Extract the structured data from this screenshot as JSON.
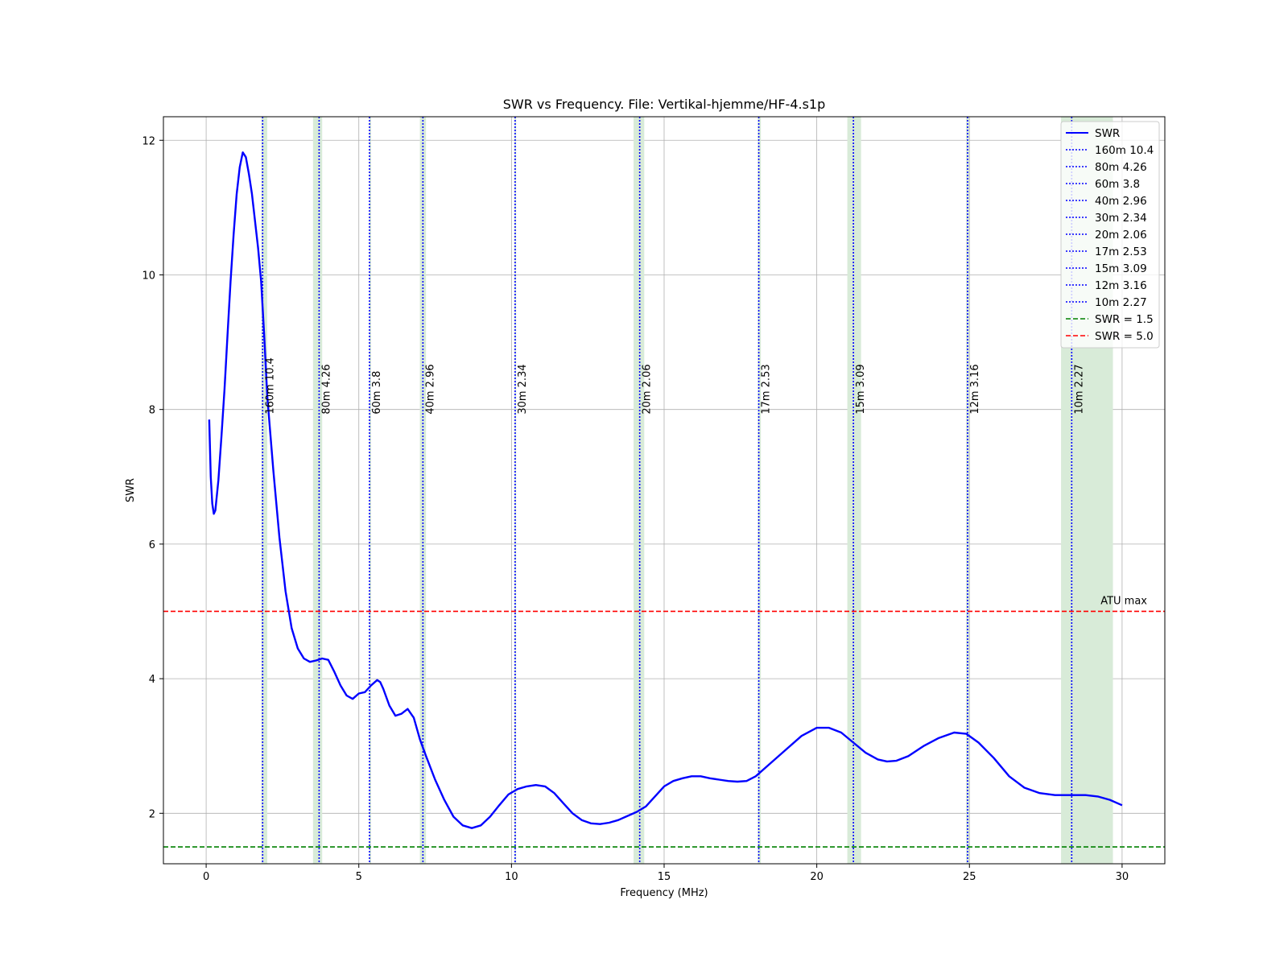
{
  "chart_data": {
    "type": "line",
    "title": "SWR vs Frequency.  File: Vertikal-hjemme/HF-4.s1p",
    "xlabel": "Frequency (MHz)",
    "ylabel": "SWR",
    "xlim": [
      -1.4,
      31.4
    ],
    "ylim": [
      1.25,
      12.35
    ],
    "x_ticks": [
      0,
      5,
      10,
      15,
      20,
      25,
      30
    ],
    "y_ticks": [
      2,
      4,
      6,
      8,
      10,
      12
    ],
    "grid": true,
    "legend_placement": "top-right",
    "series": [
      {
        "name": "SWR",
        "color": "#0000ff",
        "x": [
          0.1,
          0.15,
          0.2,
          0.25,
          0.3,
          0.4,
          0.5,
          0.6,
          0.7,
          0.8,
          0.9,
          1.0,
          1.1,
          1.2,
          1.3,
          1.4,
          1.5,
          1.6,
          1.7,
          1.8,
          1.9,
          2.0,
          2.2,
          2.4,
          2.6,
          2.8,
          3.0,
          3.2,
          3.4,
          3.6,
          3.8,
          4.0,
          4.2,
          4.4,
          4.6,
          4.8,
          5.0,
          5.2,
          5.4,
          5.6,
          5.7,
          5.8,
          6.0,
          6.2,
          6.4,
          6.6,
          6.8,
          7.0,
          7.2,
          7.5,
          7.8,
          8.1,
          8.4,
          8.7,
          9.0,
          9.3,
          9.6,
          9.9,
          10.2,
          10.5,
          10.8,
          11.1,
          11.4,
          11.7,
          12.0,
          12.3,
          12.6,
          12.9,
          13.2,
          13.5,
          13.8,
          14.1,
          14.4,
          14.7,
          15.0,
          15.3,
          15.6,
          15.9,
          16.2,
          16.5,
          16.8,
          17.1,
          17.4,
          17.7,
          18.0,
          18.5,
          19.0,
          19.5,
          20.0,
          20.4,
          20.8,
          21.2,
          21.6,
          22.0,
          22.3,
          22.6,
          23.0,
          23.5,
          24.0,
          24.5,
          24.9,
          25.3,
          25.8,
          26.3,
          26.8,
          27.3,
          27.8,
          28.3,
          28.8,
          29.2,
          29.6,
          30.0
        ],
        "y": [
          7.85,
          7.0,
          6.6,
          6.45,
          6.5,
          6.95,
          7.6,
          8.3,
          9.1,
          9.9,
          10.6,
          11.2,
          11.6,
          11.82,
          11.75,
          11.5,
          11.2,
          10.8,
          10.4,
          9.9,
          9.1,
          8.2,
          7.1,
          6.1,
          5.3,
          4.75,
          4.45,
          4.3,
          4.25,
          4.27,
          4.3,
          4.28,
          4.1,
          3.9,
          3.75,
          3.7,
          3.78,
          3.8,
          3.9,
          3.98,
          3.95,
          3.85,
          3.6,
          3.45,
          3.48,
          3.55,
          3.42,
          3.1,
          2.85,
          2.5,
          2.2,
          1.95,
          1.82,
          1.78,
          1.82,
          1.95,
          2.12,
          2.28,
          2.36,
          2.4,
          2.42,
          2.4,
          2.3,
          2.15,
          2.0,
          1.9,
          1.85,
          1.84,
          1.86,
          1.9,
          1.96,
          2.02,
          2.1,
          2.25,
          2.4,
          2.48,
          2.52,
          2.55,
          2.55,
          2.52,
          2.5,
          2.48,
          2.47,
          2.48,
          2.55,
          2.75,
          2.95,
          3.15,
          3.27,
          3.27,
          3.2,
          3.05,
          2.9,
          2.8,
          2.77,
          2.78,
          2.85,
          3.0,
          3.12,
          3.2,
          3.18,
          3.05,
          2.82,
          2.55,
          2.38,
          2.3,
          2.27,
          2.27,
          2.27,
          2.25,
          2.2,
          2.12
        ]
      }
    ],
    "bands": [
      {
        "label": "160m 10.4",
        "legend": "160m 10.4",
        "center": 1.85,
        "start": 1.81,
        "end": 2.0
      },
      {
        "label": "80m 4.26",
        "legend": " 80m 4.26",
        "center": 3.7,
        "start": 3.5,
        "end": 3.8
      },
      {
        "label": "60m 3.8",
        "legend": " 60m 3.8",
        "center": 5.35,
        "start": 5.35,
        "end": 5.37
      },
      {
        "label": "40m 2.96",
        "legend": " 40m 2.96",
        "center": 7.1,
        "start": 7.0,
        "end": 7.2
      },
      {
        "label": "30m 2.34",
        "legend": " 30m 2.34",
        "center": 10.12,
        "start": 10.1,
        "end": 10.15
      },
      {
        "label": "20m 2.06",
        "legend": " 20m 2.06",
        "center": 14.2,
        "start": 14.0,
        "end": 14.35
      },
      {
        "label": "17m 2.53",
        "legend": " 17m 2.53",
        "center": 18.1,
        "start": 18.068,
        "end": 18.168
      },
      {
        "label": "15m 3.09",
        "legend": " 15m 3.09",
        "center": 21.2,
        "start": 21.0,
        "end": 21.45
      },
      {
        "label": "12m 3.16",
        "legend": " 12m 3.16",
        "center": 24.94,
        "start": 24.89,
        "end": 24.99
      },
      {
        "label": "10m 2.27",
        "legend": " 10m 2.27",
        "center": 28.35,
        "start": 28.0,
        "end": 29.7
      }
    ],
    "reference_lines": [
      {
        "name": "SWR = 1.5",
        "value": 1.5,
        "color": "#008000"
      },
      {
        "name": "SWR = 5.0",
        "value": 5.0,
        "color": "#ff0000",
        "annotation": "ATU max"
      }
    ],
    "band_line_color": "#0000ff",
    "band_fill_color": "#d8ebd8"
  }
}
